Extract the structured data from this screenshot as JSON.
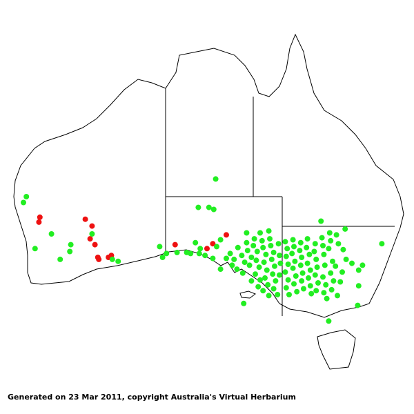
{
  "caption": "Generated on 23 Mar 2011, copyright Australia's Virtual Herbarium",
  "map": {
    "region": "Australia",
    "features": [
      "coastline",
      "state-borders"
    ],
    "colors": {
      "green": "#22ee22",
      "red": "#ee1111",
      "outline": "#000000",
      "background": "#ffffff"
    },
    "points": [
      [
        115.9,
        -28.1,
        "red"
      ],
      [
        115.8,
        -28.6,
        "red"
      ],
      [
        120.6,
        -28.3,
        "red"
      ],
      [
        121.3,
        -29.0,
        "red"
      ],
      [
        121.1,
        -30.3,
        "red"
      ],
      [
        121.6,
        -30.9,
        "red"
      ],
      [
        121.9,
        -32.2,
        "red"
      ],
      [
        122.0,
        -32.4,
        "red"
      ],
      [
        123.0,
        -32.2,
        "red"
      ],
      [
        123.3,
        -32.0,
        "red"
      ],
      [
        129.9,
        -30.9,
        "red"
      ],
      [
        133.8,
        -30.8,
        "red"
      ],
      [
        135.2,
        -29.9,
        "red"
      ],
      [
        133.2,
        -31.3,
        "red"
      ],
      [
        114.5,
        -26.0,
        "green"
      ],
      [
        114.2,
        -26.6,
        "green"
      ],
      [
        117.1,
        -29.8,
        "green"
      ],
      [
        121.3,
        -29.8,
        "green"
      ],
      [
        115.4,
        -31.3,
        "green"
      ],
      [
        119.1,
        -30.9,
        "green"
      ],
      [
        119.0,
        -31.6,
        "green"
      ],
      [
        118.0,
        -32.4,
        "green"
      ],
      [
        123.4,
        -32.4,
        "green"
      ],
      [
        124.0,
        -32.6,
        "green"
      ],
      [
        134.1,
        -24.2,
        "green"
      ],
      [
        132.3,
        -27.1,
        "green"
      ],
      [
        133.4,
        -27.1,
        "green"
      ],
      [
        133.9,
        -27.3,
        "green"
      ],
      [
        145.0,
        -28.5,
        "green"
      ],
      [
        151.3,
        -30.8,
        "green"
      ],
      [
        128.3,
        -31.1,
        "green"
      ],
      [
        128.6,
        -32.2,
        "green"
      ],
      [
        129.0,
        -31.8,
        "green"
      ],
      [
        130.1,
        -31.7,
        "green"
      ],
      [
        131.1,
        -31.7,
        "green"
      ],
      [
        131.5,
        -31.8,
        "green"
      ],
      [
        132.0,
        -30.7,
        "green"
      ],
      [
        132.4,
        -31.8,
        "green"
      ],
      [
        132.5,
        -31.3,
        "green"
      ],
      [
        133.0,
        -32.0,
        "green"
      ],
      [
        133.8,
        -32.3,
        "green"
      ],
      [
        134.2,
        -31.1,
        "green"
      ],
      [
        134.6,
        -30.4,
        "green"
      ],
      [
        135.2,
        -32.3,
        "green"
      ],
      [
        134.6,
        -33.4,
        "green"
      ],
      [
        137.0,
        -36.9,
        "green"
      ],
      [
        137.3,
        -29.7,
        "green"
      ],
      [
        137.3,
        -30.7,
        "green"
      ],
      [
        138.7,
        -29.7,
        "green"
      ],
      [
        139.6,
        -29.5,
        "green"
      ],
      [
        147.5,
        -29.3,
        "green"
      ],
      [
        149.3,
        -33.0,
        "green"
      ],
      [
        148.9,
        -33.5,
        "green"
      ],
      [
        148.2,
        -32.8,
        "green"
      ],
      [
        147.0,
        -34.7,
        "green"
      ],
      [
        148.9,
        -35.1,
        "green"
      ],
      [
        148.8,
        -37.1,
        "green"
      ],
      [
        145.8,
        -38.7,
        "green"
      ],
      [
        145.6,
        -36.4,
        "green"
      ],
      [
        146.7,
        -36.1,
        "green"
      ],
      [
        135.6,
        -31.8,
        "green"
      ],
      [
        136.0,
        -32.4,
        "green"
      ],
      [
        136.4,
        -31.2,
        "green"
      ],
      [
        136.8,
        -32.0,
        "green"
      ],
      [
        137.1,
        -32.7,
        "green"
      ],
      [
        135.8,
        -33.0,
        "green"
      ],
      [
        136.3,
        -33.4,
        "green"
      ],
      [
        136.9,
        -33.8,
        "green"
      ],
      [
        137.4,
        -31.5,
        "green"
      ],
      [
        137.8,
        -32.2,
        "green"
      ],
      [
        137.6,
        -33.0,
        "green"
      ],
      [
        138.1,
        -30.3,
        "green"
      ],
      [
        138.0,
        -31.0,
        "green"
      ],
      [
        138.4,
        -31.6,
        "green"
      ],
      [
        138.3,
        -32.5,
        "green"
      ],
      [
        138.6,
        -33.2,
        "green"
      ],
      [
        138.2,
        -33.9,
        "green"
      ],
      [
        138.7,
        -34.5,
        "green"
      ],
      [
        138.9,
        -30.5,
        "green"
      ],
      [
        139.0,
        -31.2,
        "green"
      ],
      [
        139.3,
        -31.9,
        "green"
      ],
      [
        139.1,
        -32.7,
        "green"
      ],
      [
        139.4,
        -33.5,
        "green"
      ],
      [
        139.2,
        -34.3,
        "green"
      ],
      [
        139.5,
        -35.0,
        "green"
      ],
      [
        139.7,
        -30.3,
        "green"
      ],
      [
        139.8,
        -31.0,
        "green"
      ],
      [
        140.1,
        -31.7,
        "green"
      ],
      [
        139.9,
        -32.4,
        "green"
      ],
      [
        140.2,
        -33.1,
        "green"
      ],
      [
        140.0,
        -33.9,
        "green"
      ],
      [
        140.3,
        -34.6,
        "green"
      ],
      [
        140.1,
        -35.4,
        "green"
      ],
      [
        140.5,
        -36.0,
        "green"
      ],
      [
        140.6,
        -30.8,
        "green"
      ],
      [
        140.7,
        -32.0,
        "green"
      ],
      [
        140.8,
        -32.8,
        "green"
      ],
      [
        140.7,
        -34.0,
        "green"
      ],
      [
        139.0,
        -35.6,
        "green"
      ],
      [
        139.6,
        -36.1,
        "green"
      ],
      [
        141.3,
        -30.6,
        "green"
      ],
      [
        141.5,
        -31.3,
        "green"
      ],
      [
        141.4,
        -32.1,
        "green"
      ],
      [
        141.6,
        -32.9,
        "green"
      ],
      [
        141.3,
        -33.7,
        "green"
      ],
      [
        141.6,
        -34.5,
        "green"
      ],
      [
        141.4,
        -35.3,
        "green"
      ],
      [
        141.7,
        -36.0,
        "green"
      ],
      [
        142.1,
        -30.4,
        "green"
      ],
      [
        142.2,
        -31.1,
        "green"
      ],
      [
        142.0,
        -31.8,
        "green"
      ],
      [
        142.3,
        -32.6,
        "green"
      ],
      [
        142.1,
        -33.3,
        "green"
      ],
      [
        142.4,
        -34.1,
        "green"
      ],
      [
        142.2,
        -34.9,
        "green"
      ],
      [
        142.5,
        -35.7,
        "green"
      ],
      [
        142.9,
        -30.7,
        "green"
      ],
      [
        142.8,
        -31.5,
        "green"
      ],
      [
        143.0,
        -32.2,
        "green"
      ],
      [
        142.9,
        -33.0,
        "green"
      ],
      [
        143.1,
        -33.8,
        "green"
      ],
      [
        143.0,
        -34.6,
        "green"
      ],
      [
        143.2,
        -35.4,
        "green"
      ],
      [
        143.6,
        -30.3,
        "green"
      ],
      [
        143.5,
        -31.2,
        "green"
      ],
      [
        143.8,
        -31.9,
        "green"
      ],
      [
        143.6,
        -32.8,
        "green"
      ],
      [
        143.9,
        -33.5,
        "green"
      ],
      [
        143.7,
        -34.3,
        "green"
      ],
      [
        143.9,
        -35.1,
        "green"
      ],
      [
        144.0,
        -35.9,
        "green"
      ],
      [
        144.4,
        -30.8,
        "green"
      ],
      [
        144.3,
        -31.6,
        "green"
      ],
      [
        144.5,
        -32.4,
        "green"
      ],
      [
        144.6,
        -33.2,
        "green"
      ],
      [
        144.4,
        -34.0,
        "green"
      ],
      [
        144.7,
        -34.8,
        "green"
      ],
      [
        144.5,
        -35.6,
        "green"
      ],
      [
        145.1,
        -30.2,
        "green"
      ],
      [
        145.2,
        -31.0,
        "green"
      ],
      [
        145.3,
        -31.9,
        "green"
      ],
      [
        145.4,
        -33.0,
        "green"
      ],
      [
        145.2,
        -34.2,
        "green"
      ],
      [
        145.5,
        -35.0,
        "green"
      ],
      [
        145.3,
        -35.8,
        "green"
      ],
      [
        145.9,
        -29.7,
        "green"
      ],
      [
        146.0,
        -30.5,
        "green"
      ],
      [
        145.8,
        -31.3,
        "green"
      ],
      [
        146.2,
        -32.6,
        "green"
      ],
      [
        146.0,
        -33.8,
        "green"
      ],
      [
        146.3,
        -34.6,
        "green"
      ],
      [
        146.1,
        -35.5,
        "green"
      ],
      [
        146.6,
        -29.9,
        "green"
      ],
      [
        146.8,
        -30.8,
        "green"
      ],
      [
        146.5,
        -33.1,
        "green"
      ],
      [
        147.3,
        -31.4,
        "green"
      ],
      [
        147.6,
        -32.4,
        "green"
      ],
      [
        147.2,
        -33.7,
        "green"
      ],
      [
        138.5,
        -35.2,
        "green"
      ],
      [
        137.8,
        -34.6,
        "green"
      ]
    ]
  }
}
